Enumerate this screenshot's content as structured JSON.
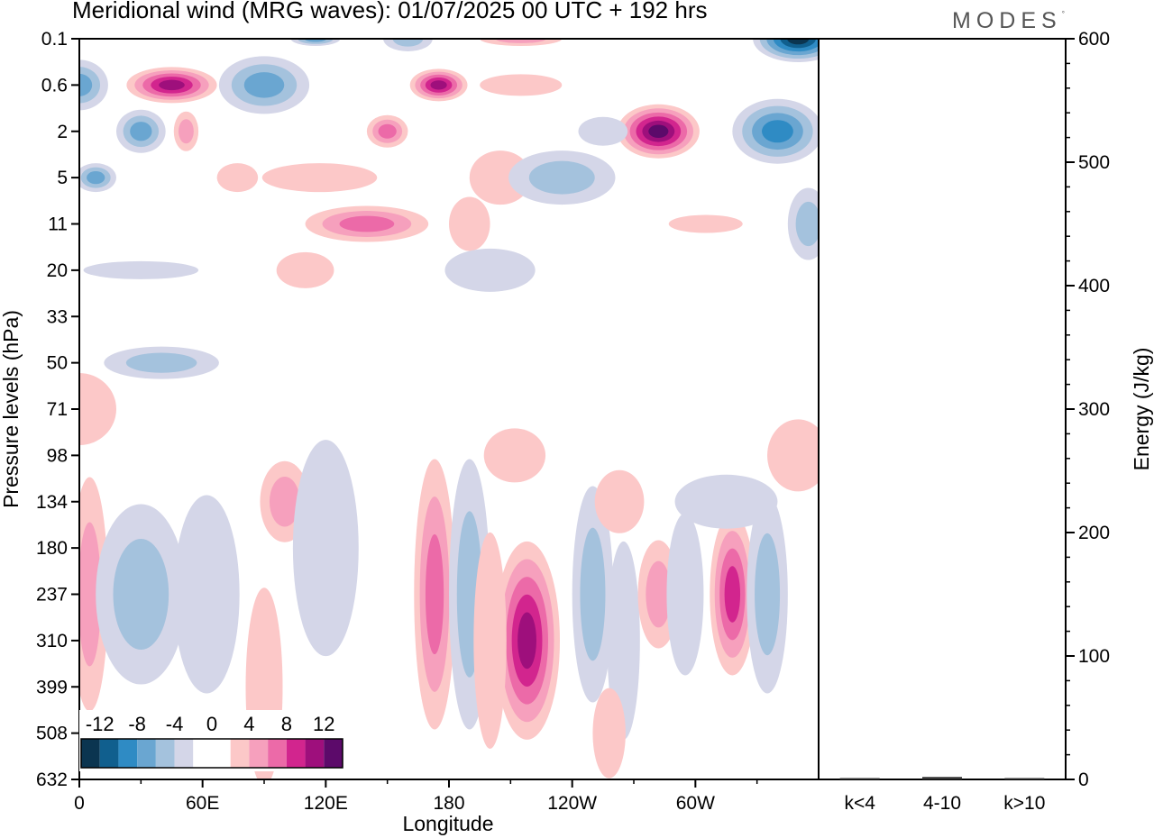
{
  "header": {
    "title": "Meridional wind (MRG waves):  01/07/2025  00 UTC  + 192 hrs",
    "logo_text": "MODES",
    "logo_mark": "°"
  },
  "chart_data": [
    {
      "type": "heatmap",
      "title": "Meridional wind (MRG waves):  01/07/2025  00 UTC  + 192 hrs",
      "xlabel": "Longitude",
      "ylabel": "Pressure levels (hPa)",
      "x_tick_labels": [
        "0",
        "60E",
        "120E",
        "180",
        "120W",
        "60W"
      ],
      "x_tick_degrees": [
        0,
        60,
        120,
        180,
        240,
        300
      ],
      "xlim": [
        0,
        360
      ],
      "y_tick_labels": [
        "0.1",
        "0.6",
        "2",
        "5",
        "11",
        "20",
        "33",
        "50",
        "71",
        "98",
        "134",
        "180",
        "237",
        "310",
        "399",
        "508",
        "632"
      ],
      "y_scale": "model levels (top = 0.1 hPa, bottom = 632 hPa)",
      "colorbar": {
        "labels": [
          "-12",
          "-8",
          "-4",
          "0",
          "4",
          "8",
          "12"
        ],
        "colors": [
          "#0b3550",
          "#105f8e",
          "#2f8bc4",
          "#6aa6d1",
          "#a4c2dd",
          "#d4d6e8",
          "#ffffff",
          "#ffffff",
          "#fcc8c8",
          "#f6a0bd",
          "#ec6aa8",
          "#d2258e",
          "#9e0f7c",
          "#5c0a6a"
        ],
        "placement": "bottom-left"
      },
      "blobs": [
        {
          "lon": 45,
          "p": "0.6",
          "v": 10,
          "rx": 22,
          "ry": 20
        },
        {
          "lon": 52,
          "p": "2",
          "v": 5,
          "rx": 6,
          "ry": 22
        },
        {
          "lon": 175,
          "p": "0.6",
          "v": 10,
          "rx": 14,
          "ry": 18
        },
        {
          "lon": 150,
          "p": "2",
          "v": 6,
          "rx": 10,
          "ry": 18
        },
        {
          "lon": 140,
          "p": "11",
          "v": 6,
          "rx": 30,
          "ry": 20
        },
        {
          "lon": 117,
          "p": "5",
          "v": 3,
          "rx": 28,
          "ry": 16
        },
        {
          "lon": 110,
          "p": "20",
          "v": 3,
          "rx": 14,
          "ry": 20
        },
        {
          "lon": 205,
          "p": "5",
          "v": 3,
          "rx": 15,
          "ry": 30
        },
        {
          "lon": 190,
          "p": "11",
          "v": 3,
          "rx": 10,
          "ry": 30
        },
        {
          "lon": 282,
          "p": "2",
          "v": 12,
          "rx": 20,
          "ry": 30
        },
        {
          "lon": 305,
          "p": "11",
          "v": 3,
          "rx": 18,
          "ry": 10
        },
        {
          "lon": 215,
          "p": "0.6",
          "v": 3,
          "rx": 20,
          "ry": 12
        },
        {
          "lon": 215,
          "p": "0.1",
          "v": 4,
          "rx": 20,
          "ry": 8
        },
        {
          "lon": 77,
          "p": "5",
          "v": 3,
          "rx": 10,
          "ry": 16
        },
        {
          "lon": 0,
          "p": "0.6",
          "v": -7,
          "rx": 14,
          "ry": 28
        },
        {
          "lon": 8,
          "p": "5",
          "v": -7,
          "rx": 10,
          "ry": 16
        },
        {
          "lon": 30,
          "p": "2",
          "v": -6,
          "rx": 12,
          "ry": 24
        },
        {
          "lon": 90,
          "p": "0.6",
          "v": -6,
          "rx": 22,
          "ry": 32
        },
        {
          "lon": 160,
          "p": "0.1",
          "v": -5,
          "rx": 12,
          "ry": 14
        },
        {
          "lon": 115,
          "p": "0.1",
          "v": -6,
          "rx": 12,
          "ry": 8
        },
        {
          "lon": 235,
          "p": "5",
          "v": -5,
          "rx": 26,
          "ry": 30
        },
        {
          "lon": 255,
          "p": "2",
          "v": -3,
          "rx": 12,
          "ry": 16
        },
        {
          "lon": 350,
          "p": "0.1",
          "v": -13,
          "rx": 22,
          "ry": 26
        },
        {
          "lon": 340,
          "p": "2",
          "v": -8,
          "rx": 22,
          "ry": 36
        },
        {
          "lon": 355,
          "p": "11",
          "v": -4,
          "rx": 10,
          "ry": 40
        },
        {
          "lon": 200,
          "p": "20",
          "v": -3,
          "rx": 22,
          "ry": 24
        },
        {
          "lon": 40,
          "p": "50",
          "v": -5,
          "rx": 28,
          "ry": 18
        },
        {
          "lon": 30,
          "p": "20",
          "v": -2,
          "rx": 28,
          "ry": 10
        },
        {
          "lon": 5,
          "p": "237",
          "v": 5,
          "rx": 9,
          "ry": 130
        },
        {
          "lon": 0,
          "p": "71",
          "v": 2,
          "rx": 18,
          "ry": 40
        },
        {
          "lon": 30,
          "p": "237",
          "v": -4,
          "rx": 22,
          "ry": 100
        },
        {
          "lon": 100,
          "p": "134",
          "v": 5,
          "rx": 12,
          "ry": 45
        },
        {
          "lon": 90,
          "p": "399",
          "v": 3,
          "rx": 9,
          "ry": 110
        },
        {
          "lon": 120,
          "p": "180",
          "v": -3,
          "rx": 16,
          "ry": 120
        },
        {
          "lon": 173,
          "p": "237",
          "v": 7,
          "rx": 10,
          "ry": 150
        },
        {
          "lon": 190,
          "p": "237",
          "v": -4,
          "rx": 10,
          "ry": 150
        },
        {
          "lon": 218,
          "p": "310",
          "v": 10,
          "rx": 16,
          "ry": 110
        },
        {
          "lon": 200,
          "p": "310",
          "v": 3,
          "rx": 8,
          "ry": 120
        },
        {
          "lon": 250,
          "p": "237",
          "v": -5,
          "rx": 10,
          "ry": 120
        },
        {
          "lon": 263,
          "p": "134",
          "v": 3,
          "rx": 12,
          "ry": 35
        },
        {
          "lon": 265,
          "p": "310",
          "v": -3,
          "rx": 8,
          "ry": 110
        },
        {
          "lon": 282,
          "p": "237",
          "v": 4,
          "rx": 10,
          "ry": 60
        },
        {
          "lon": 295,
          "p": "237",
          "v": -3,
          "rx": 9,
          "ry": 90
        },
        {
          "lon": 318,
          "p": "237",
          "v": 9,
          "rx": 11,
          "ry": 90
        },
        {
          "lon": 335,
          "p": "237",
          "v": -4,
          "rx": 10,
          "ry": 110
        },
        {
          "lon": 350,
          "p": "98",
          "v": 3,
          "rx": 15,
          "ry": 40
        },
        {
          "lon": 258,
          "p": "508",
          "v": 3,
          "rx": 8,
          "ry": 50
        },
        {
          "lon": 315,
          "p": "134",
          "v": -2,
          "rx": 25,
          "ry": 30
        },
        {
          "lon": 212,
          "p": "98",
          "v": 2,
          "rx": 15,
          "ry": 30
        },
        {
          "lon": 62,
          "p": "237",
          "v": -3,
          "rx": 16,
          "ry": 110
        }
      ]
    },
    {
      "type": "bar",
      "ylabel": "Energy (J/kg)",
      "ylim": [
        0,
        600
      ],
      "y_tick_labels": [
        "0",
        "100",
        "200",
        "300",
        "400",
        "500",
        "600"
      ],
      "categories": [
        "k<4",
        "4-10",
        "k>10"
      ],
      "values": [
        0.5,
        2,
        0.5
      ]
    }
  ]
}
